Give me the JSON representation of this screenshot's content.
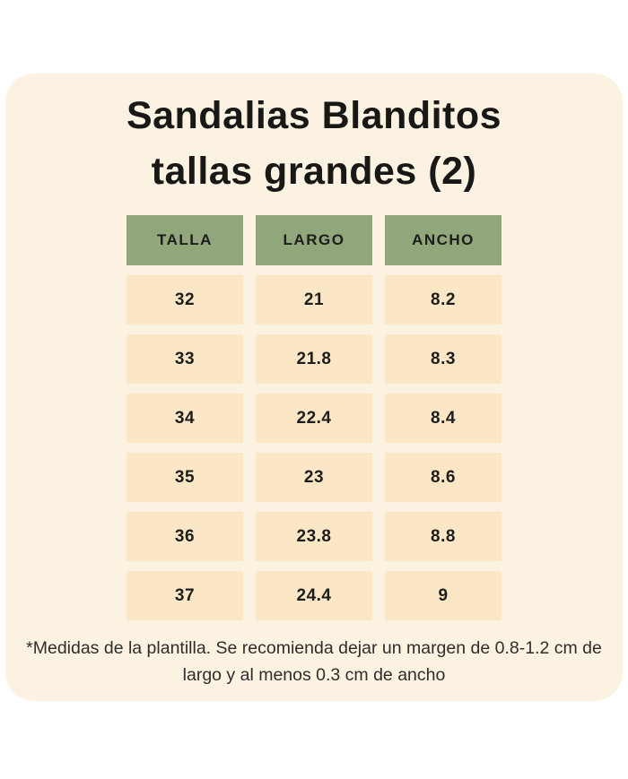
{
  "title": {
    "line1": "Sandalias Blanditos",
    "line2": "tallas grandes (2)"
  },
  "table": {
    "columns": [
      "TALLA",
      "LARGO",
      "ANCHO"
    ],
    "rows": [
      [
        "32",
        "21",
        "8.2"
      ],
      [
        "33",
        "21.8",
        "8.3"
      ],
      [
        "34",
        "22.4",
        "8.4"
      ],
      [
        "35",
        "23",
        "8.6"
      ],
      [
        "36",
        "23.8",
        "8.8"
      ],
      [
        "37",
        "24.4",
        "9"
      ]
    ]
  },
  "footnote": "*Medidas de la plantilla. Se recomienda dejar un margen de 0.8-1.2 cm de largo y al menos 0.3 cm de ancho",
  "colors": {
    "page_background": "#FFFFFF",
    "card_background": "#FCF2E1",
    "header_green": "#92A67B",
    "cell_peach": "#FBE7C6",
    "text_dark": "#1D1D1B",
    "footnote_text": "#2D2D2C"
  }
}
